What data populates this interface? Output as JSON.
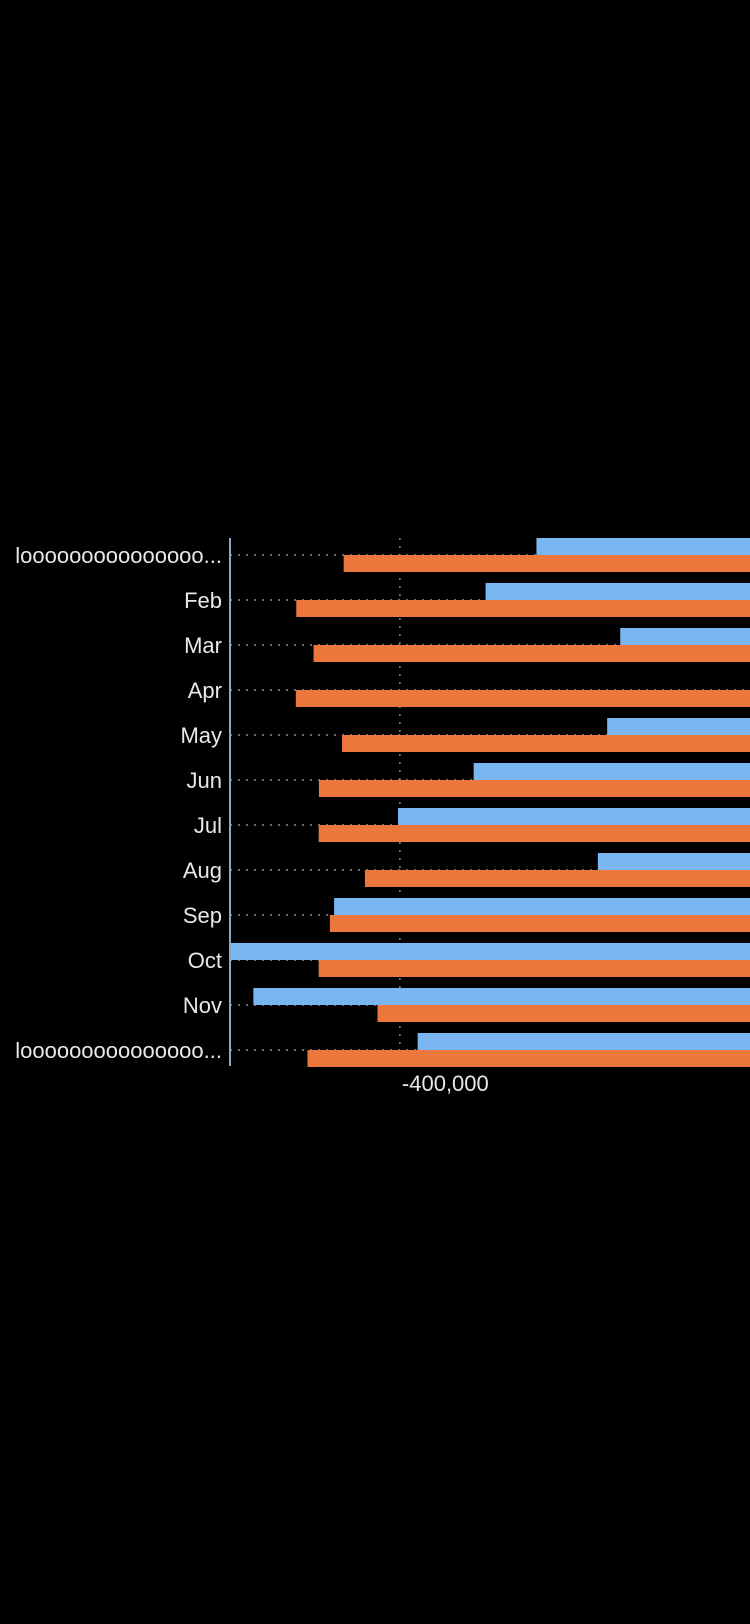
{
  "colors": {
    "background": "#000000",
    "series_blue": "#7ab6f0",
    "series_orange": "#eb773c",
    "grid": "#8a8f98",
    "axis": "#8fa6c8",
    "text": "#e8e8e8"
  },
  "chart_data": {
    "type": "bar",
    "orientation": "horizontal",
    "categories": [
      "looooooooooooooo...",
      "Feb",
      "Mar",
      "Apr",
      "May",
      "Jun",
      "Jul",
      "Aug",
      "Sep",
      "Oct",
      "Nov",
      "looooooooooooooo..."
    ],
    "series": [
      {
        "color": "#7ab6f0",
        "values": [
          185000,
          -33000,
          544000,
          null,
          488000,
          -84000,
          -408000,
          448000,
          -682000,
          -1128000,
          -1028000,
          -324000
        ]
      },
      {
        "color": "#eb773c",
        "values": [
          -641000,
          -844000,
          -770000,
          -846000,
          -648000,
          -747000,
          -748000,
          -550000,
          -700000,
          -748000,
          -496000,
          -796000
        ]
      }
    ],
    "x_ticks": [
      {
        "value": -400000,
        "label": "-400,000"
      }
    ],
    "xlim_visible": [
      -1128000,
      1100000
    ],
    "grid": true,
    "legend": "none",
    "title": "",
    "xlabel": "",
    "ylabel": ""
  }
}
